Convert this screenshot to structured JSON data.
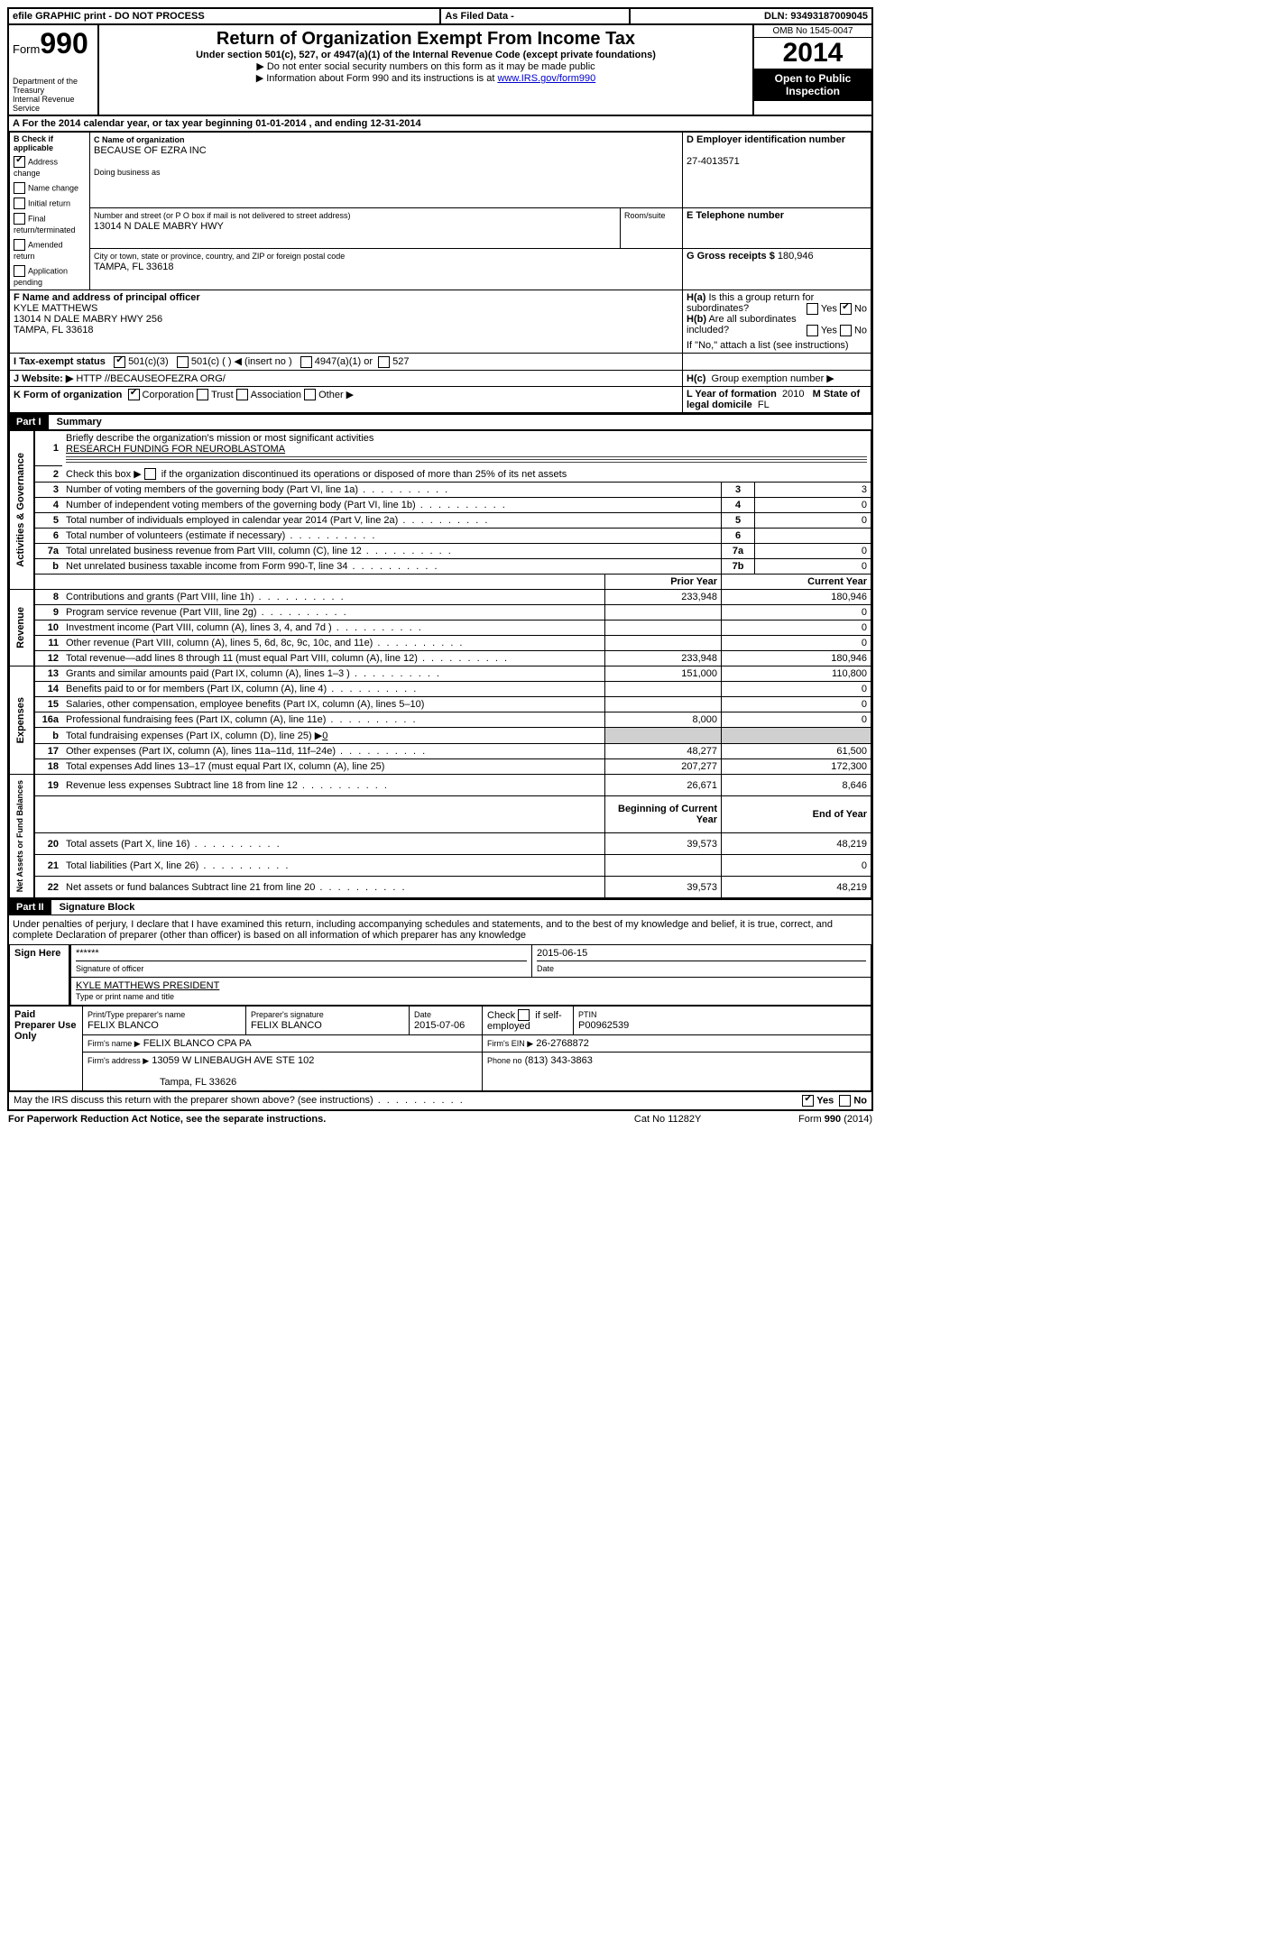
{
  "topbar": {
    "efile": "efile GRAPHIC print - DO NOT PROCESS",
    "asfiled": "As Filed Data -",
    "dln_label": "DLN:",
    "dln": "93493187009045"
  },
  "header": {
    "form_word": "Form",
    "form_no": "990",
    "dept": "Department of the Treasury",
    "irs": "Internal Revenue Service",
    "title": "Return of Organization Exempt From Income Tax",
    "subtitle": "Under section 501(c), 527, or 4947(a)(1) of the Internal Revenue Code (except private foundations)",
    "note1": "Do not enter social security numbers on this form as it may be made public",
    "note2": "Information about Form 990 and its instructions is at ",
    "note2_link": "www.IRS.gov/form990",
    "omb": "OMB No 1545-0047",
    "year": "2014",
    "open": "Open to Public Inspection"
  },
  "A": {
    "text_a": "A For the 2014 calendar year, or tax year beginning 01-01-2014",
    "text_b": ", and ending 12-31-2014"
  },
  "B": {
    "title": "B Check if applicable",
    "items": [
      {
        "label": "Address change",
        "checked": true
      },
      {
        "label": "Name change",
        "checked": false
      },
      {
        "label": "Initial return",
        "checked": false
      },
      {
        "label": "Final return/terminated",
        "checked": false
      },
      {
        "label": "Amended return",
        "checked": false
      },
      {
        "label": "Application pending",
        "checked": false
      }
    ]
  },
  "C": {
    "label": "C Name of organization",
    "name": "BECAUSE OF EZRA INC",
    "dba_label": "Doing business as",
    "addr_label": "Number and street (or P O box if mail is not delivered to street address)",
    "room_label": "Room/suite",
    "addr": "13014 N DALE MABRY HWY",
    "city_label": "City or town, state or province, country, and ZIP or foreign postal code",
    "city": "TAMPA, FL  33618"
  },
  "D": {
    "label": "D Employer identification number",
    "value": "27-4013571"
  },
  "E": {
    "label": "E Telephone number"
  },
  "G": {
    "label": "G Gross receipts $",
    "value": "180,946"
  },
  "F": {
    "label": "F   Name and address of principal officer",
    "name": "KYLE MATTHEWS",
    "addr1": "13014 N DALE MABRY HWY 256",
    "addr2": "TAMPA, FL  33618"
  },
  "H": {
    "a": "Is this a group return for subordinates?",
    "b": "Are all subordinates included?",
    "b_note": "If \"No,\" attach a list  (see instructions)",
    "c": "Group exemption number ▶",
    "yes": "Yes",
    "no": "No",
    "ha_label": "H(a)",
    "hb_label": "H(b)",
    "hc_label": "H(c)"
  },
  "I": {
    "label": "I   Tax-exempt status",
    "opt1": "501(c)(3)",
    "opt2": "501(c) (   ) ◀ (insert no )",
    "opt3": "4947(a)(1) or",
    "opt4": "527"
  },
  "J": {
    "label": "J  Website: ▶",
    "value": "HTTP //BECAUSEOFEZRA ORG/"
  },
  "K": {
    "label": "K Form of organization",
    "opts": [
      "Corporation",
      "Trust",
      "Association",
      "Other ▶"
    ]
  },
  "L": {
    "label": "L Year of formation",
    "value": "2010"
  },
  "M": {
    "label": "M State of legal domicile",
    "value": "FL"
  },
  "partI": {
    "hdr": "Part I",
    "title": "Summary"
  },
  "summary": {
    "q1_label": "Briefly describe the organization's mission or most significant activities",
    "q1_val": "RESEARCH FUNDING FOR NEUROBLASTOMA",
    "q2": "Check this box ▶",
    "q2b": "if the organization discontinued its operations or disposed of more than 25% of its net assets",
    "q1n": "1",
    "q2n": "2",
    "q3n": "3",
    "q4n": "4",
    "q5n": "5",
    "q6n": "6",
    "q7an": "7a",
    "q7bnL": "b",
    "q3": "Number of voting members of the governing body (Part VI, line 1a)",
    "q4": "Number of independent voting members of the governing body (Part VI, line 1b)",
    "q5": "Total number of individuals employed in calendar year 2014 (Part V, line 2a)",
    "q6": "Total number of volunteers (estimate if necessary)",
    "q7a": "Total unrelated business revenue from Part VIII, column (C), line 12",
    "q7b": "Net unrelated business taxable income from Form 990-T, line 34",
    "c3": "3",
    "v3": "3",
    "c4": "4",
    "v4": "0",
    "c5": "5",
    "v5": "0",
    "c6": "6",
    "v6": "",
    "c7a": "7a",
    "v7a": "0",
    "c7b": "7b",
    "v7b": "0"
  },
  "fin": {
    "py": "Prior Year",
    "cy": "Current Year",
    "boy": "Beginning of Current Year",
    "eoy": "End of Year",
    "rows": {
      "8": {
        "d": "Contributions and grants (Part VIII, line 1h)",
        "p": "233,948",
        "c": "180,946"
      },
      "9": {
        "d": "Program service revenue (Part VIII, line 2g)",
        "p": "",
        "c": "0"
      },
      "10": {
        "d": "Investment income (Part VIII, column (A), lines 3, 4, and 7d )",
        "p": "",
        "c": "0"
      },
      "11": {
        "d": "Other revenue (Part VIII, column (A), lines 5, 6d, 8c, 9c, 10c, and 11e)",
        "p": "",
        "c": "0"
      },
      "12": {
        "d": "Total revenue—add lines 8 through 11 (must equal Part VIII, column (A), line 12)",
        "p": "233,948",
        "c": "180,946"
      },
      "13": {
        "d": "Grants and similar amounts paid (Part IX, column (A), lines 1–3 )",
        "p": "151,000",
        "c": "110,800"
      },
      "14": {
        "d": "Benefits paid to or for members (Part IX, column (A), line 4)",
        "p": "",
        "c": "0"
      },
      "15": {
        "d": "Salaries, other compensation, employee benefits (Part IX, column (A), lines 5–10)",
        "p": "",
        "c": "0"
      },
      "16a": {
        "d": "Professional fundraising fees (Part IX, column (A), line 11e)",
        "p": "8,000",
        "c": "0"
      },
      "b": {
        "d": "Total fundraising expenses (Part IX, column (D), line 25) ▶",
        "sub": "0"
      },
      "17": {
        "d": "Other expenses (Part IX, column (A), lines 11a–11d, 11f–24e)",
        "p": "48,277",
        "c": "61,500"
      },
      "18": {
        "d": "Total expenses  Add lines 13–17 (must equal Part IX, column (A), line 25)",
        "p": "207,277",
        "c": "172,300"
      },
      "19": {
        "d": "Revenue less expenses  Subtract line 18 from line 12",
        "p": "26,671",
        "c": "8,646"
      },
      "20": {
        "d": "Total assets (Part X, line 16)",
        "p": "39,573",
        "c": "48,219"
      },
      "21": {
        "d": "Total liabilities (Part X, line 26)",
        "p": "",
        "c": "0"
      },
      "22": {
        "d": "Net assets or fund balances  Subtract line 21 from line 20",
        "p": "39,573",
        "c": "48,219"
      }
    }
  },
  "side_labels": {
    "ag": "Activities & Governance",
    "rev": "Revenue",
    "exp": "Expenses",
    "net": "Net Assets or Fund Balances"
  },
  "partII": {
    "hdr": "Part II",
    "title": "Signature Block"
  },
  "perjury": "Under penalties of perjury, I declare that I have examined this return, including accompanying schedules and statements, and to the best of my knowledge and belief, it is true, correct, and complete  Declaration of preparer (other than officer) is based on all information of which preparer has any knowledge",
  "sign": {
    "here": "Sign Here",
    "sig_placeholder": "******",
    "sig_label": "Signature of officer",
    "date": "2015-06-15",
    "date_label": "Date",
    "name": "KYLE MATTHEWS PRESIDENT",
    "name_label": "Type or print name and title"
  },
  "paid": {
    "title": "Paid Preparer Use Only",
    "pt_label": "Print/Type preparer's name",
    "pt_val": "FELIX BLANCO",
    "ps_label": "Preparer's signature",
    "ps_val": "FELIX BLANCO",
    "d_label": "Date",
    "d_val": "2015-07-06",
    "se_label": "Check       if self-employed",
    "ptin_label": "PTIN",
    "ptin_val": "P00962539",
    "fn_label": "Firm's name    ▶",
    "fn_val": "FELIX BLANCO CPA PA",
    "fein_label": "Firm's EIN ▶",
    "fein_val": "26-2768872",
    "fa_label": "Firm's address ▶",
    "fa_val": "13059 W LINEBAUGH AVE STE 102",
    "fa_val2": "Tampa, FL  33626",
    "ph_label": "Phone no",
    "ph_val": "(813) 343-3863"
  },
  "footer": {
    "discuss": "May the IRS discuss this return with the preparer shown above? (see instructions)",
    "yes": "Yes",
    "no": "No",
    "pra": "For Paperwork Reduction Act Notice, see the separate instructions.",
    "cat": "Cat No 11282Y",
    "form": "Form 990 (2014)"
  }
}
